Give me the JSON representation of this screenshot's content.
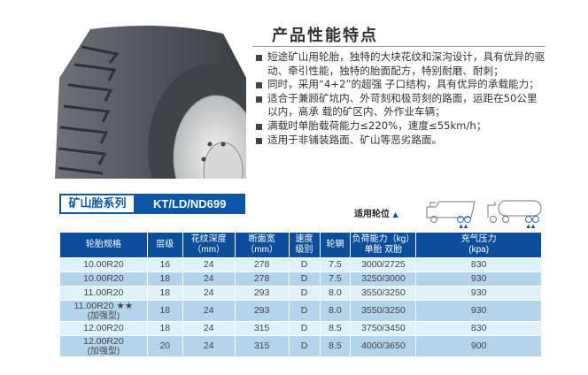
{
  "features": {
    "title": "产品性能特点",
    "items": [
      "短途矿山用轮胎，独特的大块花纹和深沟设计，具有优异的驱动、牵引性能，独特的胎面配方，特别耐磨、耐刺；",
      "同时，采用“4+2”的超强 子口结构，具有优异的承载能力；",
      "适合于兼顾矿坑内、外苛刻和极苛刻的路面，运距在50公里以内，高承 载的矿区内、外作业车辆；",
      "满载时单胎载荷能力≤220%，速度≤55km/h；",
      "适用于非铺装路面、矿山等恶劣路面。"
    ]
  },
  "series": {
    "label": "矿山胎系列",
    "model": "KT/LD/ND699"
  },
  "wheel_position": {
    "label": "适用轮位",
    "marker": "▲"
  },
  "table": {
    "headers": [
      {
        "l1": "轮胎规格",
        "l2": ""
      },
      {
        "l1": "层级",
        "l2": ""
      },
      {
        "l1": "花纹深度",
        "l2": "（mm）"
      },
      {
        "l1": "断面宽",
        "l2": "（mm）"
      },
      {
        "l1": "速度",
        "l2": "级别"
      },
      {
        "l1": "轮辋",
        "l2": ""
      },
      {
        "l1": "负荷能力（kg）",
        "l2": "单胎  双胎"
      },
      {
        "l1": "充气压力",
        "l2": "(kpa)"
      }
    ],
    "rows": [
      {
        "size": "10.00R20",
        "sub": "",
        "ply": "16",
        "depth": "24",
        "width": "278",
        "speed": "D",
        "rim": "7.5",
        "load": "3000/2725",
        "pressure": "830"
      },
      {
        "size": "10.00R20",
        "sub": "",
        "ply": "18",
        "depth": "24",
        "width": "278",
        "speed": "D",
        "rim": "7.5",
        "load": "3250/3000",
        "pressure": "930"
      },
      {
        "size": "11.00R20",
        "sub": "",
        "ply": "18",
        "depth": "24",
        "width": "293",
        "speed": "D",
        "rim": "8.0",
        "load": "3550/3250",
        "pressure": "930"
      },
      {
        "size": "11.00R20 ★★",
        "sub": "(加强型)",
        "ply": "18",
        "depth": "24",
        "width": "293",
        "speed": "D",
        "rim": "8.0",
        "load": "3550/3250",
        "pressure": "930"
      },
      {
        "size": "12.00R20",
        "sub": "",
        "ply": "18",
        "depth": "24",
        "width": "315",
        "speed": "D",
        "rim": "8.5",
        "load": "3750/3450",
        "pressure": "830"
      },
      {
        "size": "12.00R20",
        "sub": "(加强型)",
        "ply": "20",
        "depth": "24",
        "width": "315",
        "speed": "D",
        "rim": "8.5",
        "load": "4000/3650",
        "pressure": "900"
      }
    ]
  },
  "colors": {
    "brand_blue": "#0d4e9c",
    "row_light": "#dff1fb",
    "row_dark": "#b4d4ec"
  }
}
